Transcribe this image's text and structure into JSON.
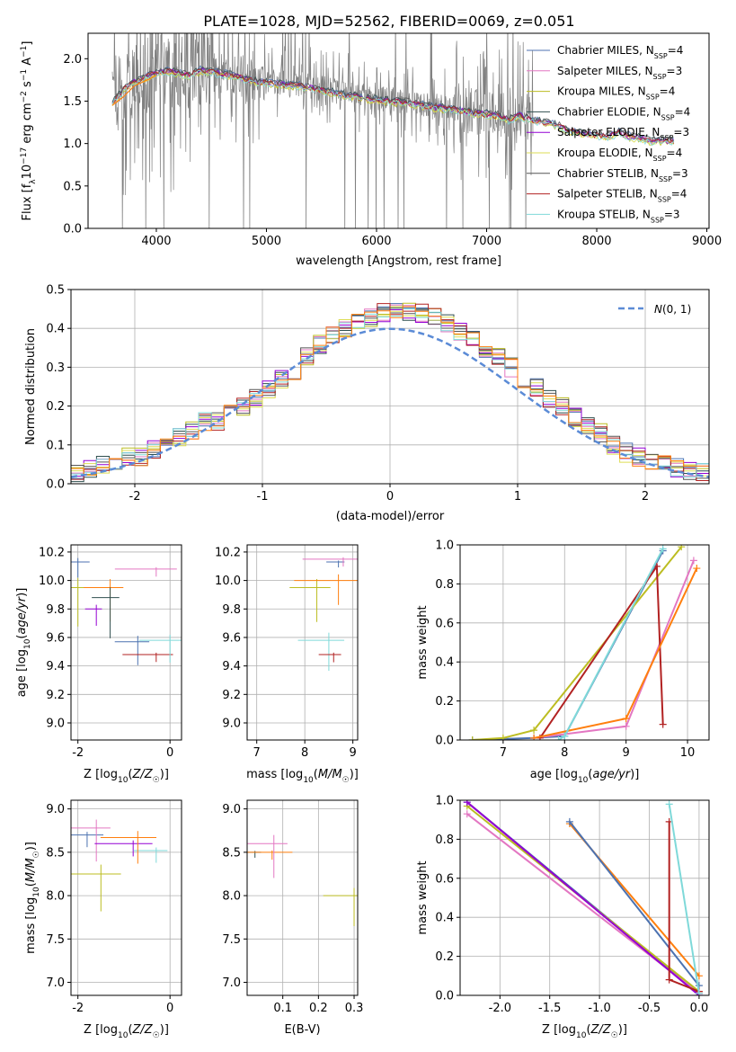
{
  "figure": {
    "title": "PLATE=1028, MJD=52562, FIBERID=0069, z=0.051"
  },
  "colors": {
    "c0": "#4c72b0",
    "c1": "#e377c2",
    "c2": "#bcbd22",
    "c3": "#2f4f4f",
    "c4": "#9400d3",
    "c5": "#dddd55",
    "c6": "#555555",
    "c7": "#b22222",
    "c8": "#7fd9d9",
    "orange": "#ff7f0e",
    "norm": "#5b8bd6",
    "data": "#808080"
  },
  "legend_models": [
    {
      "prefix": "Chabrier MILES, N",
      "sub": "SSP",
      "suffix": "=4",
      "color_key": "c0"
    },
    {
      "prefix": "Salpeter MILES, N",
      "sub": "SSP",
      "suffix": "=3",
      "color_key": "c1"
    },
    {
      "prefix": "Kroupa MILES, N",
      "sub": "SSP",
      "suffix": "=4",
      "color_key": "c2"
    },
    {
      "prefix": "Chabrier ELODIE, N",
      "sub": "SSP",
      "suffix": "=4",
      "color_key": "c3"
    },
    {
      "prefix": "Salpeter ELODIE, N",
      "sub": "SSP",
      "suffix": "=3",
      "color_key": "c4"
    },
    {
      "prefix": "Kroupa ELODIE, N",
      "sub": "SSP",
      "suffix": "=4",
      "color_key": "c5"
    },
    {
      "prefix": "Chabrier STELIB, N",
      "sub": "SSP",
      "suffix": "=3",
      "color_key": "c6"
    },
    {
      "prefix": "Salpeter STELIB, N",
      "sub": "SSP",
      "suffix": "=4",
      "color_key": "c7"
    },
    {
      "prefix": "Kroupa STELIB, N",
      "sub": "SSP",
      "suffix": "=3",
      "color_key": "c8"
    }
  ],
  "chart_data": [
    {
      "id": "spectrum",
      "type": "line",
      "xlabel": "wavelength [Angstrom, rest frame]",
      "ylabel": "Flux [fλ10⁻¹⁷ erg cm⁻² s⁻¹ A⁻¹]",
      "xlim": [
        3380,
        9020
      ],
      "ylim": [
        0,
        2.3
      ],
      "xticks": [
        4000,
        5000,
        6000,
        7000,
        8000,
        9000
      ],
      "yticks": [
        0.0,
        0.5,
        1.0,
        1.5,
        2.0
      ],
      "continuum": {
        "x": [
          3600,
          3700,
          3800,
          3900,
          4000,
          4100,
          4200,
          4300,
          4400,
          4500,
          4700,
          4900,
          5100,
          5300,
          5500,
          5700,
          5900,
          6100,
          6300,
          6500,
          6700,
          6900,
          7100,
          7200,
          7300,
          7400
        ],
        "y": [
          1.5,
          1.65,
          1.75,
          1.8,
          1.85,
          1.87,
          1.85,
          1.82,
          1.88,
          1.86,
          1.82,
          1.75,
          1.72,
          1.7,
          1.65,
          1.6,
          1.55,
          1.52,
          1.5,
          1.45,
          1.42,
          1.38,
          1.35,
          1.3,
          1.35,
          1.3
        ]
      },
      "model_tail": {
        "x": [
          7400,
          7500,
          7600,
          7700,
          7800,
          7900,
          8000,
          8100,
          8200,
          8300,
          8400,
          8500,
          8600,
          8700
        ],
        "y": [
          1.3,
          1.28,
          1.25,
          1.2,
          1.15,
          1.13,
          1.12,
          1.1,
          1.15,
          1.1,
          1.08,
          1.05,
          1.05,
          1.05
        ]
      }
    },
    {
      "id": "residuals",
      "type": "histogram",
      "xlabel": "(data-model)/error",
      "ylabel": "Normed distribution",
      "xlim": [
        -2.5,
        2.5
      ],
      "ylim": [
        0,
        0.5
      ],
      "xticks": [
        -2,
        -1,
        0,
        1,
        2
      ],
      "yticks": [
        0.0,
        0.1,
        0.2,
        0.3,
        0.4,
        0.5
      ],
      "bin_width": 0.1,
      "bin_start": -2.5,
      "base_values": [
        0.03,
        0.04,
        0.05,
        0.05,
        0.07,
        0.07,
        0.09,
        0.1,
        0.12,
        0.14,
        0.16,
        0.16,
        0.18,
        0.2,
        0.22,
        0.24,
        0.27,
        0.29,
        0.33,
        0.36,
        0.38,
        0.4,
        0.42,
        0.43,
        0.44,
        0.45,
        0.44,
        0.44,
        0.43,
        0.41,
        0.39,
        0.38,
        0.35,
        0.33,
        0.3,
        0.27,
        0.25,
        0.22,
        0.2,
        0.17,
        0.15,
        0.13,
        0.1,
        0.08,
        0.07,
        0.06,
        0.05,
        0.04,
        0.03,
        0.03
      ],
      "legend_label": "N(0, 1)"
    },
    {
      "id": "z-age",
      "type": "scatter",
      "xlabel": "Z [log10(Z/Z☉)]",
      "ylabel": "age  [log10(age/yr)]",
      "xlim": [
        -2.15,
        0.25
      ],
      "ylim": [
        8.88,
        10.25
      ],
      "xticks": [
        -2,
        0
      ],
      "yticks": [
        9.0,
        9.2,
        9.4,
        9.6,
        9.8,
        10.0,
        10.2
      ],
      "points": [
        {
          "x": -2.0,
          "y": 10.13,
          "c": "c0"
        },
        {
          "x": -0.3,
          "y": 10.08,
          "c": "c1"
        },
        {
          "x": -2.0,
          "y": 9.95,
          "c": "c2"
        },
        {
          "x": -0.7,
          "y": 9.57,
          "c": "c0"
        },
        {
          "x": -1.3,
          "y": 9.95,
          "c": "orange"
        },
        {
          "x": -0.3,
          "y": 9.48,
          "c": "c7"
        },
        {
          "x": 0.0,
          "y": 9.58,
          "c": "c8"
        },
        {
          "x": -1.6,
          "y": 9.8,
          "c": "c4"
        },
        {
          "x": -1.3,
          "y": 9.88,
          "c": "c3"
        }
      ]
    },
    {
      "id": "mass-age",
      "type": "scatter",
      "xlabel": "mass [log10(M/M☉)]",
      "ylabel": "",
      "xlim": [
        6.8,
        9.1
      ],
      "ylim": [
        8.88,
        10.25
      ],
      "xticks": [
        7,
        8,
        9
      ],
      "yticks": [
        9.0,
        9.2,
        9.4,
        9.6,
        9.8,
        10.0,
        10.2
      ],
      "points": [
        {
          "x": 8.7,
          "y": 10.13,
          "c": "c0"
        },
        {
          "x": 8.8,
          "y": 10.15,
          "c": "c1"
        },
        {
          "x": 8.25,
          "y": 9.95,
          "c": "c2"
        },
        {
          "x": 8.5,
          "y": 9.58,
          "c": "c8"
        },
        {
          "x": 8.6,
          "y": 9.48,
          "c": "c7"
        },
        {
          "x": 8.7,
          "y": 10.0,
          "c": "orange"
        }
      ]
    },
    {
      "id": "age-massweight",
      "type": "line",
      "xlabel": "age  [log10(age/yr)]",
      "ylabel": "mass weight",
      "xlim": [
        6.3,
        10.35
      ],
      "ylim": [
        0,
        1.0
      ],
      "xticks": [
        7,
        8,
        9,
        10
      ],
      "yticks": [
        0.0,
        0.2,
        0.4,
        0.6,
        0.8,
        1.0
      ],
      "series": [
        {
          "c": "c0",
          "x": [
            6.5,
            7.5,
            8.0,
            9.6
          ],
          "y": [
            0.0,
            0.01,
            0.02,
            0.97
          ]
        },
        {
          "c": "c1",
          "x": [
            7.5,
            9.0,
            10.1
          ],
          "y": [
            0.01,
            0.07,
            0.92
          ]
        },
        {
          "c": "c2",
          "x": [
            6.5,
            7.0,
            7.5,
            9.9
          ],
          "y": [
            0.0,
            0.01,
            0.05,
            0.99
          ]
        },
        {
          "c": "c7",
          "x": [
            7.6,
            9.5,
            9.6
          ],
          "y": [
            0.01,
            0.89,
            0.08
          ]
        },
        {
          "c": "orange",
          "x": [
            7.5,
            9.0,
            10.15
          ],
          "y": [
            0.01,
            0.11,
            0.88
          ]
        },
        {
          "c": "c8",
          "x": [
            7.9,
            8.0,
            9.6
          ],
          "y": [
            0.0,
            0.02,
            0.98
          ]
        }
      ]
    },
    {
      "id": "z-mass",
      "type": "scatter",
      "xlabel": "Z [log10(Z/Z☉)]",
      "ylabel": "mass [log10(M/M☉)]",
      "xlim": [
        -2.15,
        0.25
      ],
      "ylim": [
        6.85,
        9.1
      ],
      "xticks": [
        -2,
        0
      ],
      "yticks": [
        7.0,
        7.5,
        8.0,
        8.5,
        9.0
      ],
      "points": [
        {
          "x": -1.8,
          "y": 8.7,
          "c": "c0"
        },
        {
          "x": -1.6,
          "y": 8.78,
          "c": "c1"
        },
        {
          "x": -1.5,
          "y": 8.25,
          "c": "c2"
        },
        {
          "x": -0.8,
          "y": 8.6,
          "c": "c4"
        },
        {
          "x": -0.3,
          "y": 8.52,
          "c": "c8"
        },
        {
          "x": -0.7,
          "y": 8.67,
          "c": "orange"
        }
      ]
    },
    {
      "id": "ebv-mass",
      "type": "scatter",
      "xlabel": "E(B-V)",
      "ylabel": "",
      "xlim": [
        0.0,
        0.31
      ],
      "ylim": [
        6.85,
        9.1
      ],
      "xticks": [
        0.1,
        0.2,
        0.3
      ],
      "yticks": [
        7.0,
        7.5,
        8.0,
        8.5,
        9.0
      ],
      "points": [
        {
          "x": 0.022,
          "y": 8.5,
          "c": "c3"
        },
        {
          "x": 0.07,
          "y": 8.5,
          "c": "orange"
        },
        {
          "x": 0.075,
          "y": 8.6,
          "c": "c1"
        },
        {
          "x": 0.3,
          "y": 8.0,
          "c": "c2"
        }
      ]
    },
    {
      "id": "z-massweight",
      "type": "line",
      "xlabel": "Z [log10(Z/Z☉)]",
      "ylabel": "mass weight",
      "xlim": [
        -2.4,
        0.1
      ],
      "ylim": [
        0,
        1.0
      ],
      "xticks": [
        -2.0,
        -1.5,
        -1.0,
        -0.5,
        0.0
      ],
      "yticks": [
        0.0,
        0.2,
        0.4,
        0.6,
        0.8,
        1.0
      ],
      "series": [
        {
          "c": "c0",
          "x": [
            -2.33,
            0.0
          ],
          "y": [
            0.99,
            0.01
          ]
        },
        {
          "c": "c1",
          "x": [
            -2.33,
            0.0
          ],
          "y": [
            0.93,
            0.01
          ]
        },
        {
          "c": "c2",
          "x": [
            -2.33,
            0.0
          ],
          "y": [
            0.97,
            0.02
          ]
        },
        {
          "c": "c4",
          "x": [
            -2.33,
            0.0
          ],
          "y": [
            0.99,
            0.0
          ]
        },
        {
          "c": "orange",
          "x": [
            -1.3,
            0.0
          ],
          "y": [
            0.88,
            0.1
          ]
        },
        {
          "c": "c0",
          "x": [
            -1.3,
            0.0
          ],
          "y": [
            0.89,
            0.05
          ]
        },
        {
          "c": "c7",
          "x": [
            -0.3,
            -0.3,
            0.0
          ],
          "y": [
            0.89,
            0.08,
            0.02
          ]
        },
        {
          "c": "c8",
          "x": [
            -0.3,
            0.0
          ],
          "y": [
            0.98,
            0.01
          ]
        }
      ]
    }
  ]
}
